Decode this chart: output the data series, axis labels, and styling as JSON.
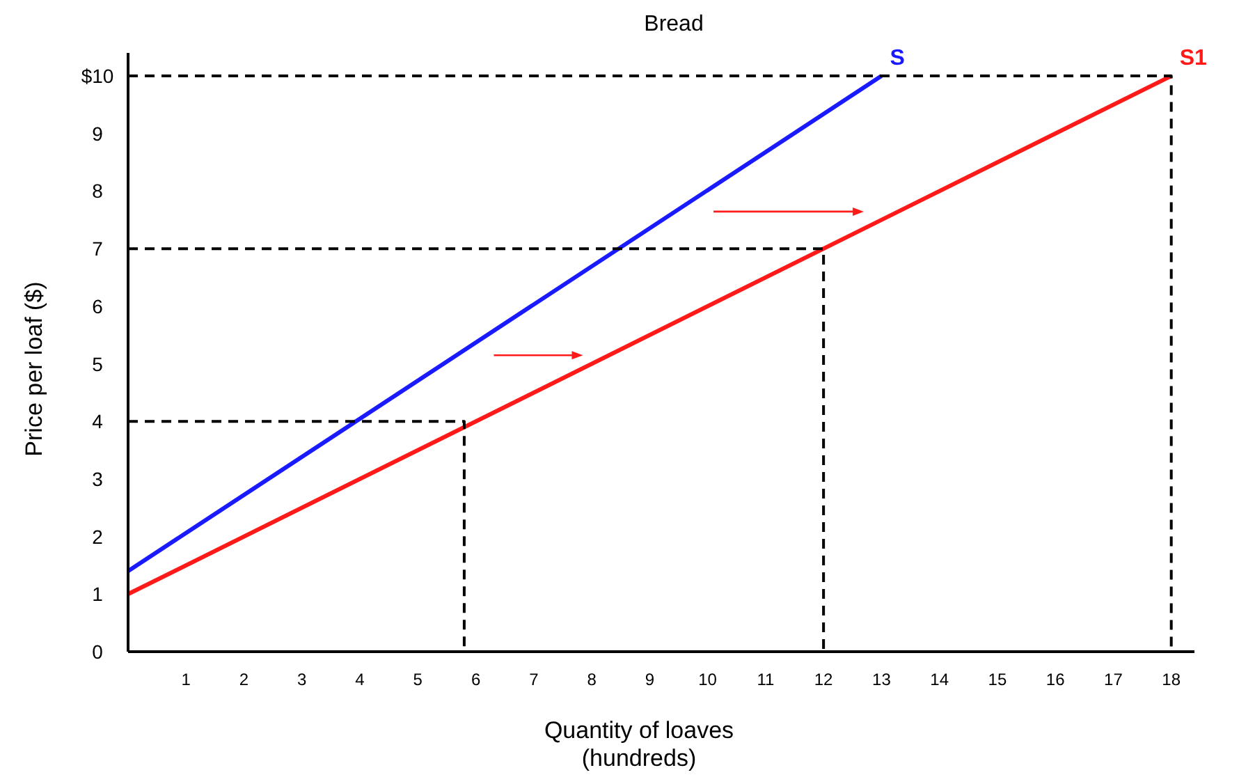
{
  "chart_data": {
    "type": "line",
    "title": "Bread",
    "xlabel": "Quantity of loaves\n(hundreds)",
    "ylabel": "Price per loaf ($)",
    "xlim": [
      0,
      18.4
    ],
    "ylim": [
      0,
      10.4
    ],
    "xticks": [
      1,
      2,
      3,
      4,
      5,
      6,
      7,
      8,
      9,
      10,
      11,
      12,
      13,
      14,
      15,
      16,
      17,
      18
    ],
    "yticks": [
      {
        "value": 0,
        "label": "0"
      },
      1,
      2,
      3,
      4,
      5,
      6,
      7,
      8,
      9,
      {
        "value": 10,
        "label": "$10"
      }
    ],
    "grid": false,
    "marker": "none",
    "series": [
      {
        "name": "S",
        "color": "#1a1aff",
        "x": [
          0,
          13
        ],
        "values": [
          1.4,
          10
        ],
        "line_style": "solid"
      },
      {
        "name": "S1",
        "color": "#ff1a1a",
        "x": [
          0,
          18
        ],
        "values": [
          1,
          10
        ],
        "line_style": "solid"
      },
      {
        "color": "#000000",
        "x": [
          0,
          18,
          18
        ],
        "values": [
          10,
          10,
          0
        ],
        "line_style": "dashed"
      },
      {
        "color": "#000000",
        "x": [
          0,
          12,
          12
        ],
        "values": [
          7,
          7,
          0
        ],
        "line_style": "dashed"
      },
      {
        "color": "#000000",
        "x": [
          0,
          5.8,
          5.8
        ],
        "values": [
          4,
          4,
          0
        ],
        "line_style": "dashed"
      }
    ]
  }
}
